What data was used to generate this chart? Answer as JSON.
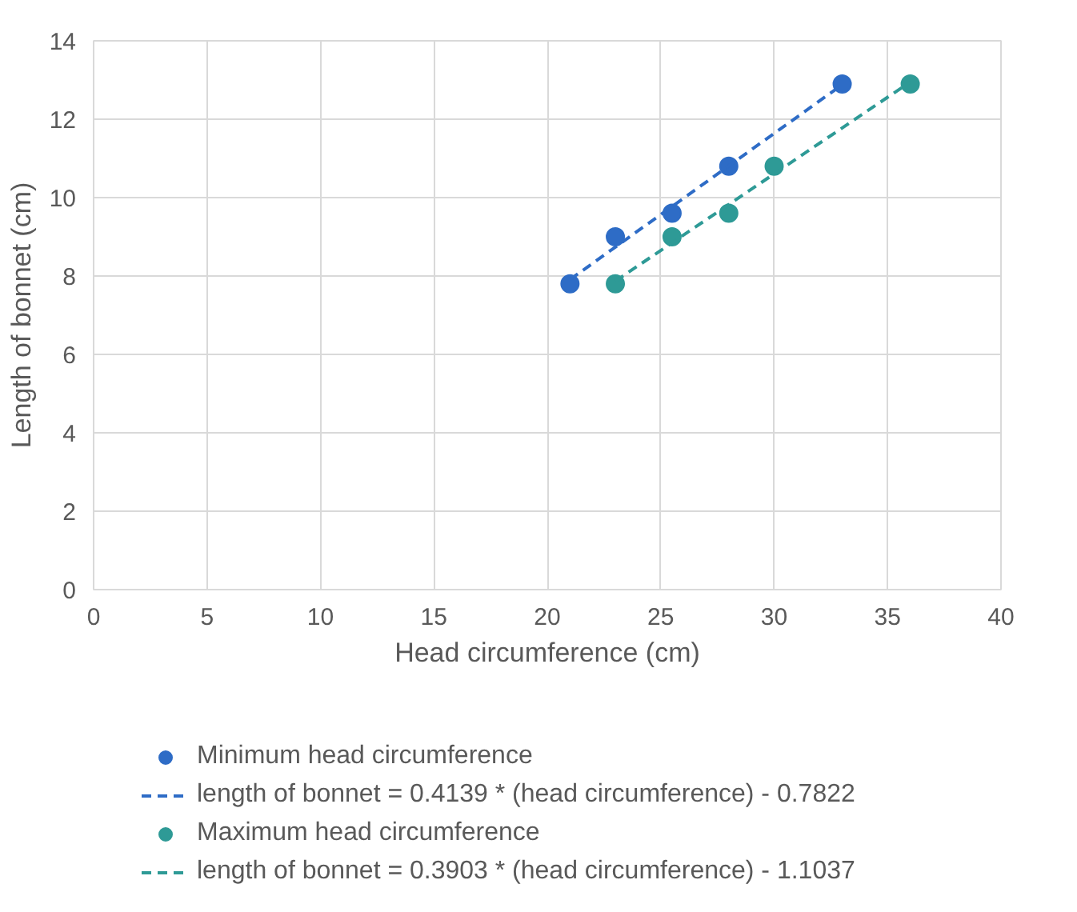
{
  "chart_data": {
    "type": "scatter",
    "xlabel": "Head circumference (cm)",
    "ylabel": "Length of bonnet (cm)",
    "xlim": [
      0,
      40
    ],
    "xticks": [
      0,
      5,
      10,
      15,
      20,
      25,
      30,
      35,
      40
    ],
    "ylim": [
      0,
      14
    ],
    "yticks": [
      0,
      2,
      4,
      6,
      8,
      10,
      12,
      14
    ],
    "grid": true,
    "legend": "bottom",
    "marker": "circle",
    "series": [
      {
        "name": "Minimum head circumference",
        "color": "#2e6cc6",
        "x": [
          21,
          23,
          25.5,
          28,
          33
        ],
        "values": [
          7.8,
          9.0,
          9.6,
          10.8,
          12.9
        ]
      },
      {
        "name": "length of bonnet = 0.4139 * (head circumference) - 0.7822",
        "type": "line",
        "line_style": "dashed",
        "marker": "none",
        "color": "#2e6cc6",
        "x": [
          21,
          33
        ],
        "values": [
          7.91,
          12.88
        ]
      },
      {
        "name": "Maximum head circumference",
        "color": "#2e9a96",
        "x": [
          23,
          25.5,
          28,
          30,
          36
        ],
        "values": [
          7.8,
          9.0,
          9.6,
          10.8,
          12.9
        ]
      },
      {
        "name": "length of bonnet = 0.3903 * (head circumference) - 1.1037",
        "type": "line",
        "line_style": "dashed",
        "marker": "none",
        "color": "#2e9a96",
        "x": [
          23,
          36
        ],
        "values": [
          7.87,
          12.95
        ]
      }
    ]
  }
}
